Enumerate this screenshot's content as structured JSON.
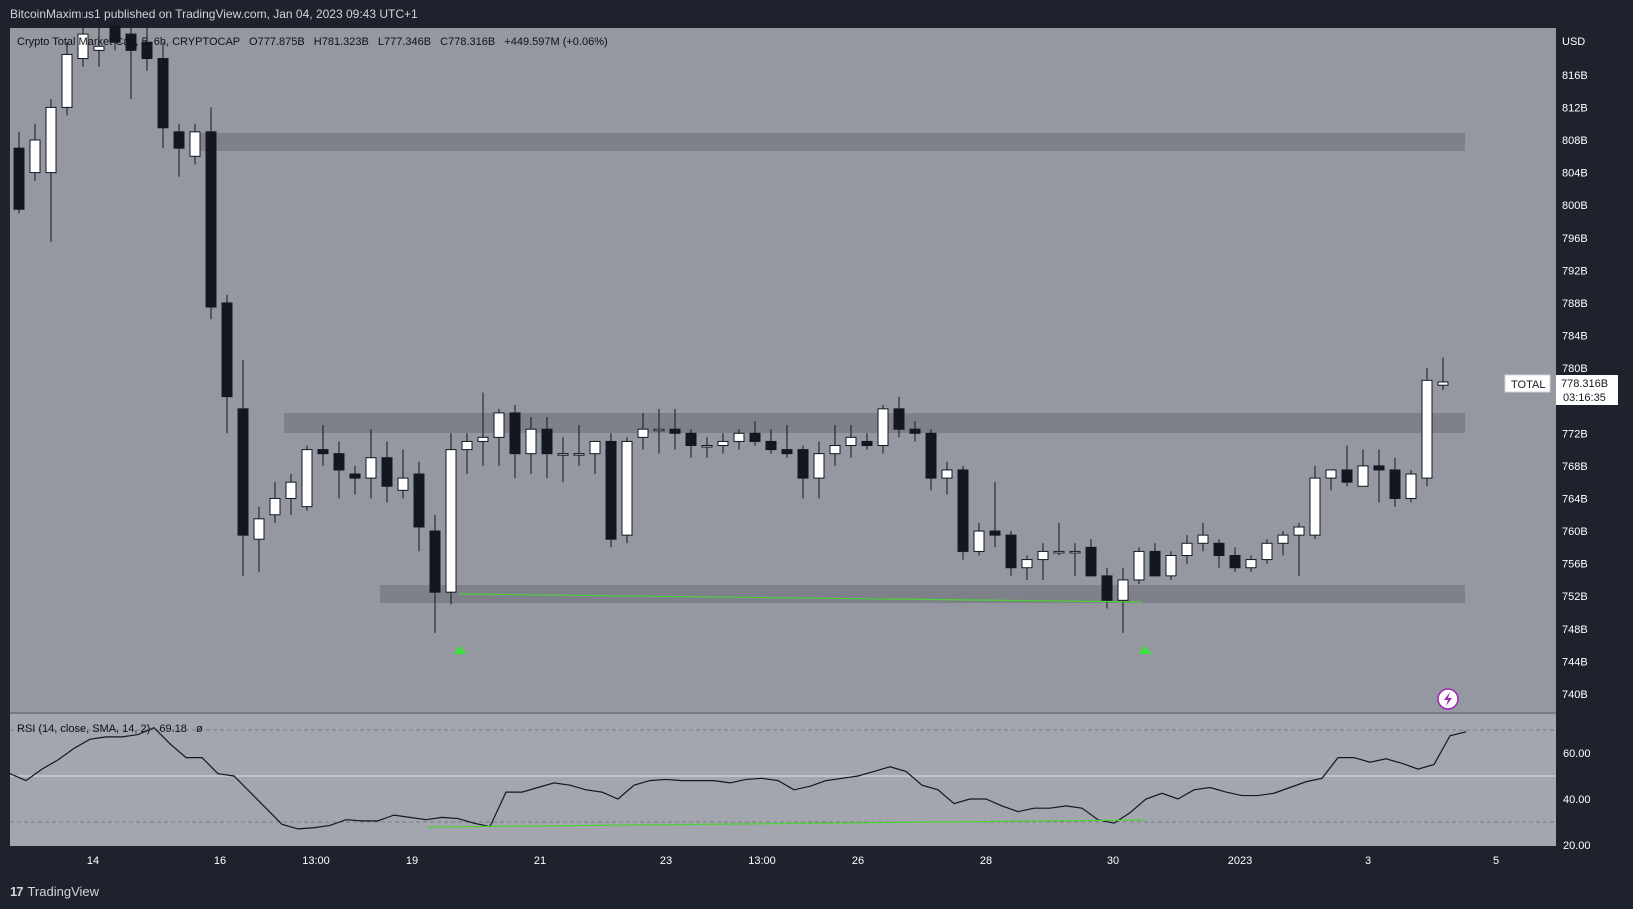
{
  "header": {
    "publisher_text": "BitcoinMaximus1 published on TradingView.com, Jan 04, 2023 09:43 UTC+1"
  },
  "legend": {
    "symbol": "Crypto Total Market Cap, 5, 6h, CRYPTOCAP",
    "o_label": "O",
    "o_value": "777.875B",
    "h_label": "H",
    "h_value": "781.323B",
    "l_label": "L",
    "l_value": "777.346B",
    "c_label": "C",
    "c_value": "778.316B",
    "change": "+449.597M (+0.06%)"
  },
  "price_scale": {
    "currency": "USD",
    "ticks": [
      "816B",
      "812B",
      "808B",
      "804B",
      "800B",
      "796B",
      "792B",
      "788B",
      "784B",
      "780B",
      "772B",
      "768B",
      "764B",
      "760B",
      "756B",
      "752B",
      "748B",
      "744B",
      "740B"
    ]
  },
  "price_label": {
    "symbol_tag": "TOTAL",
    "value": "778.316B",
    "countdown": "03:16:35"
  },
  "rsi": {
    "label": "RSI (14, close, SMA, 14, 2)",
    "value": "69.18",
    "extra": "ø",
    "ticks": [
      "60.00",
      "40.00",
      "20.00"
    ]
  },
  "time_axis": {
    "labels": [
      "14",
      "16",
      "13:00",
      "19",
      "21",
      "23",
      "13:00",
      "26",
      "28",
      "30",
      "2023",
      "3",
      "5"
    ]
  },
  "footer": {
    "logo_mark": "17",
    "brand": "TradingView"
  },
  "colors": {
    "page_bg": "#1e222d",
    "chart_bg": "#9598a1",
    "rsi_bg": "#a3a6ae",
    "up_candle": "#ffffff",
    "down_candle": "#131722",
    "zone": "#6e7079",
    "support_line": "#4cd137",
    "marker": "#3ee03e",
    "rsi_line": "#131722",
    "axis_bg": "#1e222d"
  },
  "chart_data": [
    {
      "type": "candlestick",
      "title": "Crypto Total Market Cap, 5, 6h, CRYPTOCAP",
      "ylim": [
        738,
        822
      ],
      "ylabel": "USD",
      "x_labels": [
        "14",
        "16",
        "13:00",
        "19",
        "21",
        "23",
        "13:00",
        "26",
        "28",
        "30",
        "2023",
        "3",
        "5"
      ],
      "candles": [
        [
          807.0,
          809.0,
          799.0,
          799.5
        ],
        [
          804.0,
          810.0,
          803.0,
          808.0
        ],
        [
          804.0,
          813.0,
          795.5,
          812.0
        ],
        [
          812.0,
          820.0,
          811.0,
          818.5
        ],
        [
          818.0,
          824.0,
          817.0,
          821.0
        ],
        [
          819.0,
          823.0,
          817.0,
          819.5
        ],
        [
          822.0,
          823.0,
          819.0,
          820.0
        ],
        [
          821.0,
          823.0,
          813.0,
          819.0
        ],
        [
          820.0,
          822.0,
          816.5,
          818.0
        ],
        [
          818.0,
          820.0,
          807.0,
          809.5
        ],
        [
          809.0,
          810.0,
          803.5,
          807.0
        ],
        [
          806.0,
          810.0,
          805.0,
          809.0
        ],
        [
          809.0,
          812.0,
          786.0,
          787.5
        ],
        [
          788.0,
          789.0,
          772.0,
          776.5
        ],
        [
          775.0,
          781.0,
          754.5,
          759.5
        ],
        [
          759.0,
          763.0,
          755.0,
          761.5
        ],
        [
          762.0,
          766.0,
          761.0,
          764.0
        ],
        [
          764.0,
          767.0,
          762.0,
          766.0
        ],
        [
          763.0,
          770.5,
          762.5,
          770.0
        ],
        [
          770.0,
          773.0,
          768.0,
          769.5
        ],
        [
          769.5,
          771.0,
          764.0,
          767.5
        ],
        [
          767.0,
          768.0,
          764.5,
          766.5
        ],
        [
          766.5,
          772.5,
          764.0,
          769.0
        ],
        [
          769.0,
          771.0,
          763.5,
          765.5
        ],
        [
          765.0,
          770.0,
          764.0,
          766.5
        ],
        [
          767.0,
          768.5,
          757.5,
          760.5
        ],
        [
          760.0,
          762.0,
          747.5,
          752.5
        ],
        [
          752.5,
          772.0,
          751.0,
          770.0
        ],
        [
          770.0,
          772.0,
          767.0,
          771.0
        ],
        [
          771.0,
          777.0,
          768.0,
          771.5
        ],
        [
          771.5,
          775.0,
          768.0,
          774.5
        ],
        [
          774.5,
          775.5,
          766.5,
          769.5
        ],
        [
          769.5,
          774.0,
          767.0,
          772.5
        ],
        [
          772.5,
          774.0,
          766.5,
          769.5
        ],
        [
          769.5,
          771.5,
          766.0,
          769.5
        ],
        [
          769.5,
          773.0,
          768.0,
          769.5
        ],
        [
          769.5,
          771.0,
          767.0,
          771.0
        ],
        [
          771.0,
          772.0,
          758.0,
          759.0
        ],
        [
          759.5,
          771.5,
          758.5,
          771.0
        ],
        [
          771.5,
          774.5,
          770.0,
          772.5
        ],
        [
          772.5,
          775.0,
          769.5,
          772.5
        ],
        [
          772.5,
          775.0,
          770.0,
          772.0
        ],
        [
          772.0,
          772.5,
          769.0,
          770.5
        ],
        [
          770.5,
          771.5,
          769.0,
          770.5
        ],
        [
          770.5,
          772.0,
          769.5,
          771.0
        ],
        [
          771.0,
          772.5,
          770.0,
          772.0
        ],
        [
          772.0,
          773.5,
          770.5,
          771.0
        ],
        [
          771.0,
          772.5,
          769.5,
          770.0
        ],
        [
          770.0,
          773.0,
          769.0,
          769.5
        ],
        [
          770.0,
          770.5,
          764.0,
          766.5
        ],
        [
          766.5,
          771.0,
          764.0,
          769.5
        ],
        [
          769.5,
          773.0,
          768.0,
          770.5
        ],
        [
          770.5,
          773.0,
          769.0,
          771.5
        ],
        [
          771.0,
          772.0,
          770.0,
          770.5
        ],
        [
          770.5,
          775.5,
          769.5,
          775.0
        ],
        [
          775.0,
          776.5,
          771.5,
          772.5
        ],
        [
          772.5,
          773.5,
          771.0,
          772.0
        ],
        [
          772.0,
          772.5,
          765.0,
          766.5
        ],
        [
          766.5,
          768.5,
          764.5,
          767.5
        ],
        [
          767.5,
          768.0,
          756.5,
          757.5
        ],
        [
          757.5,
          761.0,
          757.0,
          760.0
        ],
        [
          760.0,
          766.0,
          758.0,
          759.5
        ],
        [
          759.5,
          760.0,
          754.5,
          755.5
        ],
        [
          755.5,
          757.0,
          754.0,
          756.5
        ],
        [
          756.5,
          758.5,
          754.0,
          757.5
        ],
        [
          757.5,
          761.0,
          757.0,
          757.5
        ],
        [
          757.5,
          758.5,
          754.5,
          757.5
        ],
        [
          758.0,
          759.0,
          754.5,
          754.5
        ],
        [
          754.5,
          755.5,
          750.5,
          751.5
        ],
        [
          751.5,
          755.5,
          747.5,
          754.0
        ],
        [
          754.0,
          758.0,
          753.5,
          757.5
        ],
        [
          757.5,
          758.5,
          754.5,
          754.5
        ],
        [
          754.5,
          757.5,
          754.0,
          757.0
        ],
        [
          757.0,
          759.5,
          756.0,
          758.5
        ],
        [
          758.5,
          761.0,
          757.5,
          759.5
        ],
        [
          758.5,
          759.0,
          755.5,
          757.0
        ],
        [
          757.0,
          758.0,
          755.0,
          755.5
        ],
        [
          755.5,
          757.0,
          755.0,
          756.5
        ],
        [
          756.5,
          759.0,
          756.0,
          758.5
        ],
        [
          758.5,
          760.0,
          757.0,
          759.5
        ],
        [
          759.5,
          761.0,
          754.5,
          760.5
        ],
        [
          759.5,
          768.0,
          759.0,
          766.5
        ],
        [
          766.5,
          767.5,
          765.0,
          767.5
        ],
        [
          767.5,
          770.5,
          765.5,
          766.0
        ],
        [
          765.5,
          770.0,
          765.5,
          768.0
        ],
        [
          768.0,
          770.0,
          763.5,
          767.5
        ],
        [
          767.5,
          769.0,
          763.0,
          764.0
        ],
        [
          764.0,
          767.5,
          763.5,
          767.0
        ],
        [
          766.5,
          780.0,
          765.5,
          778.5
        ],
        [
          777.9,
          781.3,
          777.3,
          778.3
        ]
      ]
    },
    {
      "type": "line",
      "title": "RSI (14, close, SMA, 14, 2)",
      "ylim": [
        20,
        75
      ],
      "y_ticks": [
        60,
        40,
        20
      ],
      "bands": [
        70,
        50,
        30
      ],
      "values": [
        51,
        48,
        53,
        57,
        62,
        66,
        67,
        67,
        68,
        71,
        64,
        58,
        58,
        51,
        50,
        43,
        36,
        29,
        27,
        27.5,
        28.5,
        31,
        30.5,
        30.5,
        33,
        32,
        31,
        32,
        31.5,
        29.5,
        28,
        43,
        43,
        45,
        47,
        46,
        44,
        43,
        40,
        46,
        48,
        48.5,
        48,
        48,
        48,
        47,
        48.5,
        49,
        48,
        44,
        45.5,
        48,
        49,
        50,
        52,
        54,
        52,
        46,
        44,
        38,
        40,
        40,
        37,
        34.5,
        36,
        36,
        37,
        36,
        31,
        29.5,
        34,
        40,
        42.5,
        40,
        44,
        45,
        43,
        41.5,
        41.5,
        42.5,
        45,
        47.5,
        49,
        58,
        58,
        56,
        57.5,
        55.5,
        53,
        55,
        67.5,
        69.2
      ]
    }
  ],
  "annotations": {
    "support_line_label": "",
    "markers": [
      "support-test-1",
      "support-test-2"
    ]
  }
}
